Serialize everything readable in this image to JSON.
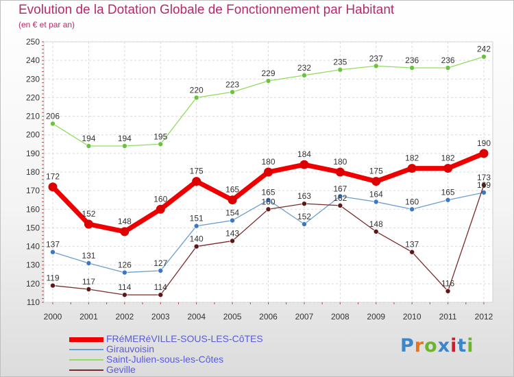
{
  "title": "Evolution de la Dotation Globale de Fonctionnement par Habitant",
  "subtitle": "(en € et par an)",
  "logo": {
    "text": "Proxiti",
    "colors": [
      "#3a86c8",
      "#e8731b",
      "#6bb52d",
      "#3a86c8",
      "#d6182c",
      "#3a86c8",
      "#6bb52d"
    ]
  },
  "chart_data": {
    "type": "line",
    "x": [
      "2000",
      "2001",
      "2002",
      "2003",
      "2004",
      "2005",
      "2006",
      "2007",
      "2008",
      "2009",
      "2010",
      "2011",
      "2012"
    ],
    "ylim": [
      110,
      250
    ],
    "yticks": [
      110,
      120,
      130,
      140,
      150,
      160,
      170,
      180,
      190,
      200,
      210,
      220,
      230,
      240,
      250
    ],
    "grid": true,
    "legend_position": "bottom",
    "series": [
      {
        "name": "FRéMERéVILLE-SOUS-LES-CôTES",
        "color": "#ee0000",
        "marker": "#dd0000",
        "width": 7,
        "radius": 6.5,
        "values": [
          172,
          152,
          148,
          160,
          175,
          165,
          180,
          184,
          180,
          175,
          182,
          182,
          190
        ]
      },
      {
        "name": "Girauvoisin",
        "color": "#6a9ecf",
        "marker": "#3b78c0",
        "width": 1.3,
        "radius": 3.5,
        "values": [
          137,
          131,
          126,
          127,
          151,
          154,
          165,
          152,
          167,
          164,
          160,
          165,
          169
        ]
      },
      {
        "name": "Saint-Julien-sous-les-Côtes",
        "color": "#8fdc5f",
        "marker": "#6cc23e",
        "width": 1.3,
        "radius": 3.5,
        "values": [
          206,
          194,
          194,
          195,
          220,
          223,
          229,
          232,
          235,
          237,
          236,
          236,
          242
        ]
      },
      {
        "name": "Geville",
        "color": "#7a2a2a",
        "marker": "#5e1616",
        "width": 1.3,
        "radius": 3.5,
        "values": [
          119,
          117,
          114,
          114,
          140,
          143,
          160,
          163,
          162,
          148,
          137,
          116,
          173
        ]
      }
    ]
  }
}
